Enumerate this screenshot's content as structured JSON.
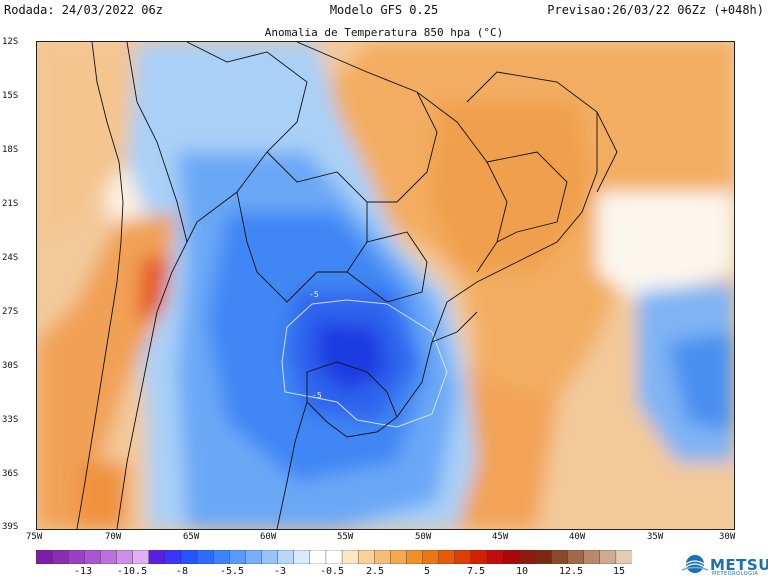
{
  "header": {
    "run": "Rodada: 24/03/2022 06z",
    "model": "Modelo GFS 0.25",
    "valid": "Previsao:26/03/22 06Zz (+048h)"
  },
  "title": "Anomalia de Temperatura 850 hpa (°C)",
  "map": {
    "lat_labels": [
      "12S",
      "15S",
      "18S",
      "21S",
      "24S",
      "27S",
      "30S",
      "33S",
      "36S",
      "39S"
    ],
    "lon_labels": [
      "75W",
      "70W",
      "65W",
      "60W",
      "55W",
      "50W",
      "45W",
      "40W",
      "35W",
      "30W"
    ],
    "contour_labels": [
      "-5",
      "-5"
    ]
  },
  "colorbar": {
    "tick_labels": [
      "-13",
      "-10.5",
      "-8",
      "-5.5",
      "-3",
      "-0.5",
      "2.5",
      "5",
      "7.5",
      "10",
      "12.5",
      "15"
    ],
    "colors": [
      "#7a1fa2",
      "#8a2db4",
      "#9b3fc4",
      "#ab55d2",
      "#bd6fdc",
      "#cf8ee6",
      "#e0b0f0",
      "#5a1fe6",
      "#3a34ff",
      "#2255ff",
      "#2f6bff",
      "#3f82ff",
      "#5a98ff",
      "#78aefc",
      "#97c3fa",
      "#b8d8fb",
      "#d8eafc",
      "#ffffff",
      "#ffffff",
      "#fde6c4",
      "#fbd19a",
      "#f7bd73",
      "#f4a94e",
      "#f0902a",
      "#ec7514",
      "#e65a0a",
      "#e03c06",
      "#d62004",
      "#c40c0c",
      "#a80a0a",
      "#8e1a10",
      "#7a2a14",
      "#8a4a2a",
      "#a06a4a",
      "#b88a6a",
      "#d0aa90",
      "#e6cbb4"
    ]
  },
  "logo": {
    "name": "METSUL",
    "sub": "METEOROLOGIA"
  }
}
